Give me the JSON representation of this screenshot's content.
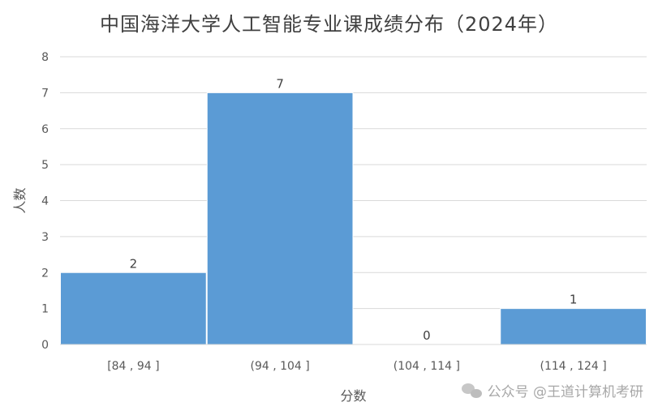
{
  "chart_data": {
    "type": "bar",
    "title": "中国海洋大学人工智能专业课成绩分布（2024年）",
    "xlabel": "分数",
    "ylabel": "人数",
    "categories": [
      "[84 , 94 ]",
      "(94 , 104 ]",
      "(104 , 114 ]",
      "(114 , 124 ]"
    ],
    "values": [
      2,
      7,
      0,
      1
    ],
    "ylim": [
      0,
      8
    ],
    "yticks": [
      0,
      1,
      2,
      3,
      4,
      5,
      6,
      7,
      8
    ],
    "grid": true,
    "legend": "none",
    "bar_color": "#5B9BD5"
  },
  "watermark": {
    "text": "公众号 @王道计算机考研",
    "icon": "wechat-icon"
  }
}
